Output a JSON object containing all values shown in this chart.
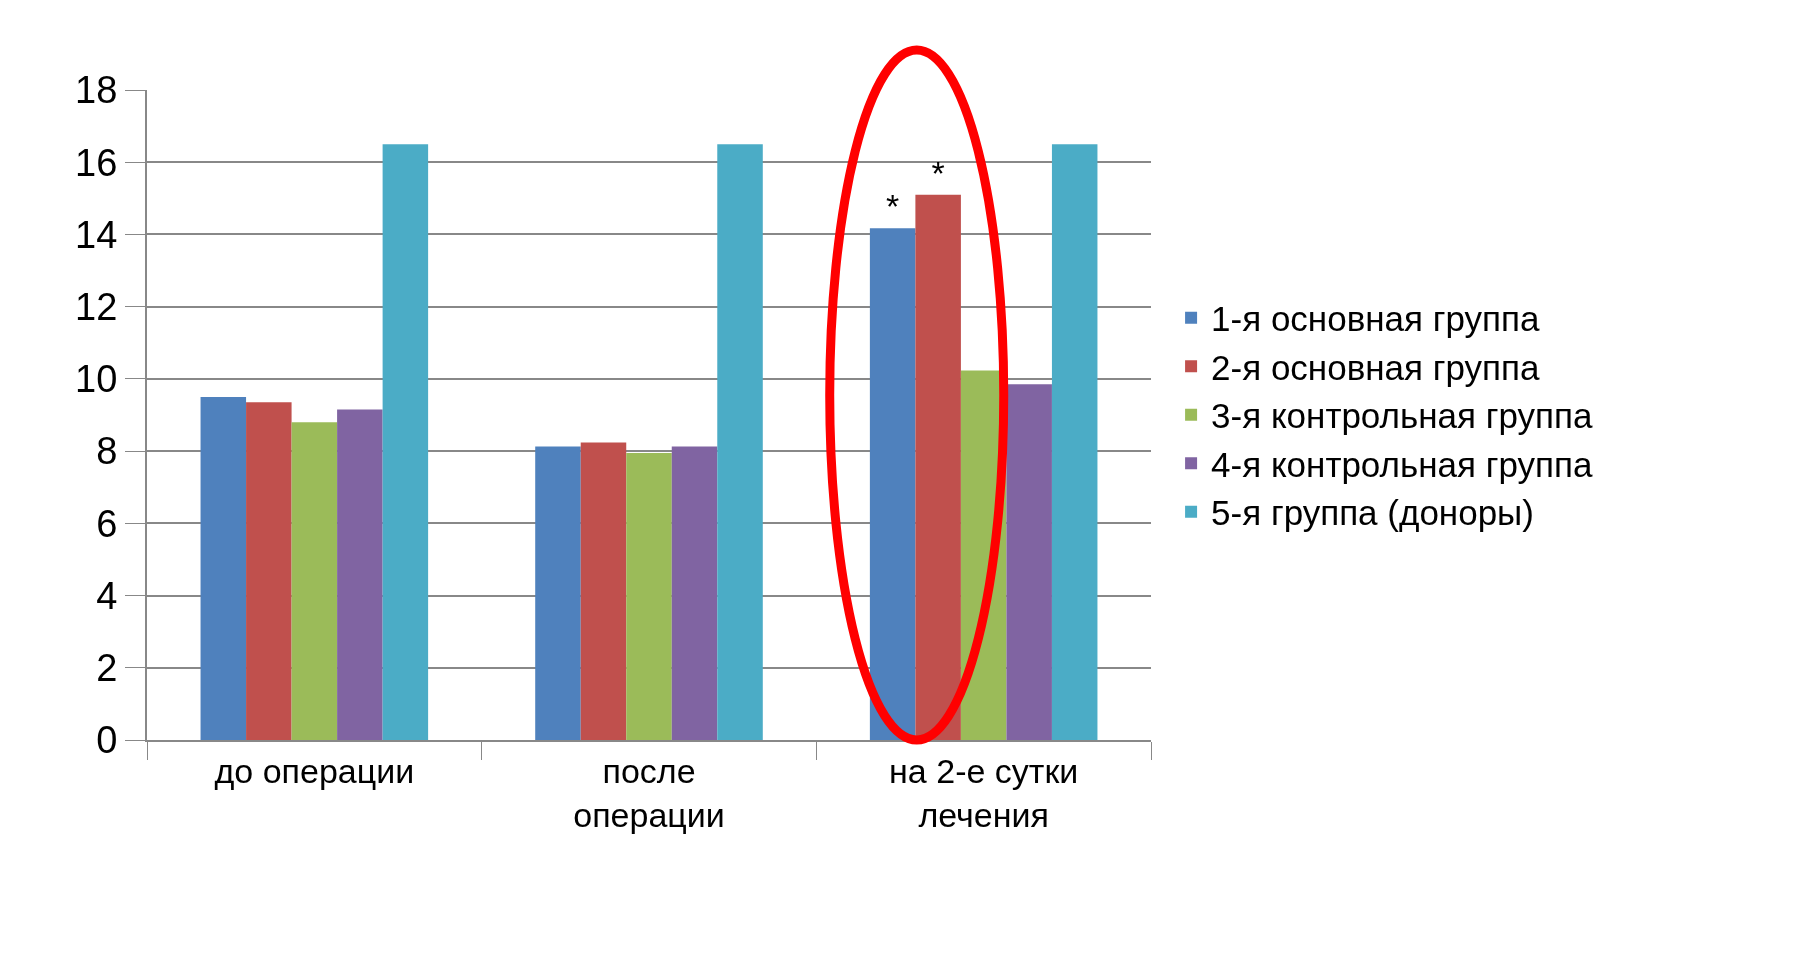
{
  "chart_data": {
    "type": "bar",
    "categories": [
      "до операции",
      "после операции",
      "на 2-е сутки лечения"
    ],
    "series": [
      {
        "name": "1-я основная группа",
        "color": "#4f81bd",
        "values": [
          9.5,
          8.13,
          14.17
        ],
        "value_labels": [
          null,
          null,
          "*"
        ]
      },
      {
        "name": "2-я основная группа",
        "color": "#c0504d",
        "values": [
          9.35,
          8.24,
          15.1
        ],
        "value_labels": [
          null,
          null,
          "*"
        ]
      },
      {
        "name": "3-я контрольная группа",
        "color": "#9bbb59",
        "values": [
          8.8,
          7.95,
          10.23
        ]
      },
      {
        "name": "4-я контрольная группа",
        "color": "#8064a2",
        "values": [
          9.15,
          8.13,
          9.85
        ]
      },
      {
        "name": "5-я группа (доноры)",
        "color": "#4bacc6",
        "values": [
          16.5,
          16.5,
          16.5
        ]
      }
    ],
    "ylim": [
      0,
      18
    ],
    "yticks": [
      0,
      2,
      4,
      6,
      8,
      10,
      12,
      14,
      16,
      18
    ],
    "grid": "y",
    "legend": "right"
  }
}
